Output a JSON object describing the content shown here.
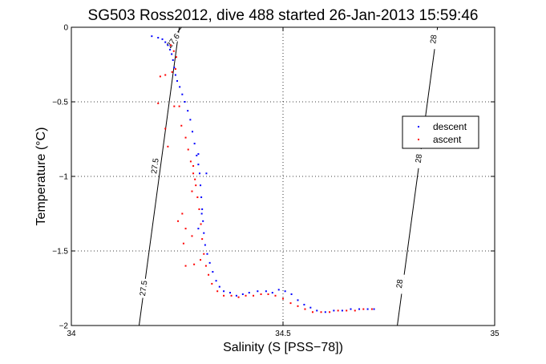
{
  "chart_data": {
    "type": "scatter",
    "title": "SG503 Ross2012, dive 488 started 26-Jan-2013 15:59:46",
    "xlabel": "Salinity (S [PSS−78])",
    "ylabel": "Temperature (°C)",
    "xlim": [
      34,
      35
    ],
    "ylim": [
      -2,
      0
    ],
    "xticks": [
      34,
      34.5,
      35
    ],
    "xtick_labels": [
      "34",
      "34.5",
      "35"
    ],
    "yticks": [
      -2,
      -1.5,
      -1,
      -0.5,
      0
    ],
    "ytick_labels": [
      "−2",
      "−1.5",
      "−1",
      "−0.5",
      "0"
    ],
    "grid": "dotted",
    "legend": {
      "position": "right",
      "entries": [
        "descent",
        "ascent"
      ]
    },
    "series": [
      {
        "name": "descent",
        "color": "#0000ff",
        "marker": "point",
        "points": [
          [
            34.19,
            -0.06
          ],
          [
            34.205,
            -0.07
          ],
          [
            34.215,
            -0.08
          ],
          [
            34.222,
            -0.1
          ],
          [
            34.228,
            -0.12
          ],
          [
            34.233,
            -0.15
          ],
          [
            34.237,
            -0.18
          ],
          [
            34.24,
            -0.22
          ],
          [
            34.243,
            -0.27
          ],
          [
            34.246,
            -0.32
          ],
          [
            34.25,
            -0.36
          ],
          [
            34.256,
            -0.4
          ],
          [
            34.262,
            -0.45
          ],
          [
            34.268,
            -0.5
          ],
          [
            34.275,
            -0.56
          ],
          [
            34.281,
            -0.62
          ],
          [
            34.286,
            -0.7
          ],
          [
            34.291,
            -0.78
          ],
          [
            34.296,
            -0.86
          ],
          [
            34.3,
            -0.92
          ],
          [
            34.303,
            -0.98
          ],
          [
            34.305,
            -1.06
          ],
          [
            34.307,
            -1.14
          ],
          [
            34.309,
            -1.22
          ],
          [
            34.311,
            -1.3
          ],
          [
            34.313,
            -1.38
          ],
          [
            34.316,
            -1.46
          ],
          [
            34.321,
            -1.52
          ],
          [
            34.327,
            -1.58
          ],
          [
            34.334,
            -1.64
          ],
          [
            34.342,
            -1.7
          ],
          [
            34.35,
            -1.74
          ],
          [
            34.36,
            -1.77
          ],
          [
            34.375,
            -1.78
          ],
          [
            34.39,
            -1.8
          ],
          [
            34.405,
            -1.79
          ],
          [
            34.42,
            -1.78
          ],
          [
            34.44,
            -1.77
          ],
          [
            34.46,
            -1.77
          ],
          [
            34.475,
            -1.78
          ],
          [
            34.49,
            -1.76
          ],
          [
            34.505,
            -1.77
          ],
          [
            34.52,
            -1.79
          ],
          [
            34.535,
            -1.83
          ],
          [
            34.55,
            -1.86
          ],
          [
            34.565,
            -1.88
          ],
          [
            34.58,
            -1.9
          ],
          [
            34.6,
            -1.91
          ],
          [
            34.62,
            -1.9
          ],
          [
            34.64,
            -1.9
          ],
          [
            34.66,
            -1.89
          ],
          [
            34.68,
            -1.89
          ],
          [
            34.7,
            -1.89
          ],
          [
            34.715,
            -1.89
          ],
          [
            34.3,
            -0.85
          ],
          [
            34.319,
            -0.98
          ],
          [
            34.308,
            -1.25
          ],
          [
            34.3,
            -1.35
          ]
        ]
      },
      {
        "name": "ascent",
        "color": "#ff0000",
        "marker": "point",
        "points": [
          [
            34.235,
            -0.12
          ],
          [
            34.242,
            -0.16
          ],
          [
            34.248,
            -0.2
          ],
          [
            34.21,
            -0.33
          ],
          [
            34.222,
            -0.32
          ],
          [
            34.238,
            -0.3
          ],
          [
            34.246,
            -0.28
          ],
          [
            34.205,
            -0.51
          ],
          [
            34.243,
            -0.53
          ],
          [
            34.255,
            -0.53
          ],
          [
            34.222,
            -0.68
          ],
          [
            34.228,
            -0.8
          ],
          [
            34.26,
            -0.66
          ],
          [
            34.27,
            -0.74
          ],
          [
            34.276,
            -0.82
          ],
          [
            34.282,
            -0.9
          ],
          [
            34.288,
            -0.98
          ],
          [
            34.294,
            -1.06
          ],
          [
            34.298,
            -1.14
          ],
          [
            34.302,
            -1.22
          ],
          [
            34.306,
            -1.32
          ],
          [
            34.309,
            -1.42
          ],
          [
            34.313,
            -1.52
          ],
          [
            34.318,
            -1.6
          ],
          [
            34.324,
            -1.66
          ],
          [
            34.332,
            -1.72
          ],
          [
            34.345,
            -1.77
          ],
          [
            34.36,
            -1.8
          ],
          [
            34.378,
            -1.8
          ],
          [
            34.395,
            -1.81
          ],
          [
            34.412,
            -1.8
          ],
          [
            34.43,
            -1.8
          ],
          [
            34.448,
            -1.79
          ],
          [
            34.465,
            -1.79
          ],
          [
            34.482,
            -1.8
          ],
          [
            34.5,
            -1.82
          ],
          [
            34.518,
            -1.85
          ],
          [
            34.535,
            -1.87
          ],
          [
            34.552,
            -1.89
          ],
          [
            34.57,
            -1.91
          ],
          [
            34.59,
            -1.91
          ],
          [
            34.61,
            -1.91
          ],
          [
            34.63,
            -1.9
          ],
          [
            34.65,
            -1.9
          ],
          [
            34.67,
            -1.9
          ],
          [
            34.69,
            -1.89
          ],
          [
            34.71,
            -1.89
          ],
          [
            34.27,
            -1.6
          ],
          [
            34.29,
            -1.59
          ],
          [
            34.305,
            -1.56
          ],
          [
            34.262,
            -1.25
          ],
          [
            34.27,
            -1.35
          ],
          [
            34.285,
            -1.4
          ],
          [
            34.285,
            -1.1
          ],
          [
            34.292,
            -1.02
          ],
          [
            34.288,
            -0.93
          ],
          [
            34.265,
            -1.45
          ],
          [
            34.252,
            -1.3
          ]
        ]
      }
    ],
    "density_contours": [
      {
        "label": "27.5",
        "points": [
          [
            34.16,
            -2.0
          ],
          [
            34.255,
            0.0
          ]
        ],
        "label_positions": [
          [
            34.17,
            -1.75
          ],
          [
            34.197,
            -0.93
          ]
        ]
      },
      {
        "label": "27.6",
        "points": [
          [
            34.238,
            -0.08
          ],
          [
            34.26,
            0.0
          ]
        ],
        "label_positions": [
          [
            34.24,
            -0.09
          ]
        ]
      },
      {
        "label": "28",
        "points": [
          [
            34.77,
            -2.0
          ],
          [
            34.865,
            0.0
          ]
        ],
        "label_positions": [
          [
            34.775,
            -1.72
          ],
          [
            34.82,
            -0.88
          ],
          [
            34.855,
            -0.08
          ]
        ]
      }
    ]
  }
}
